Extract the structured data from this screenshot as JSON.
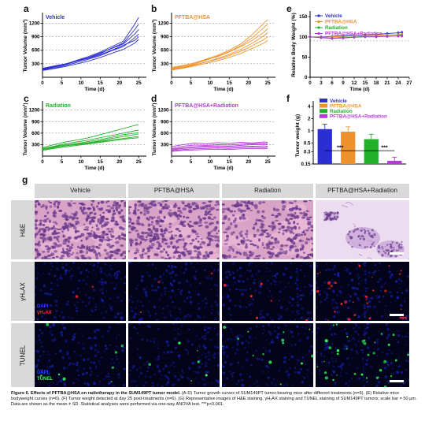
{
  "panel_letters": {
    "a": "a",
    "b": "b",
    "c": "c",
    "d": "d",
    "e": "e",
    "f": "f",
    "g": "g"
  },
  "chart_data": [
    {
      "id": "a",
      "type": "line",
      "title": "Vehicle",
      "title_color": "#2b2fcf",
      "xlabel": "Time (d)",
      "ylabel": "Tumor Volume (mm³)",
      "xlim": [
        0,
        27
      ],
      "ylim": [
        0,
        1400
      ],
      "xticks": [
        0,
        5,
        10,
        15,
        20,
        25
      ],
      "yticks": [
        300,
        600,
        900,
        1200
      ],
      "color": "#2b2fcf",
      "x": [
        0,
        3,
        6,
        9,
        12,
        15,
        18,
        21,
        24,
        25
      ],
      "series": [
        {
          "values": [
            180,
            230,
            290,
            380,
            460,
            560,
            680,
            800,
            1180,
            1330
          ]
        },
        {
          "values": [
            170,
            220,
            280,
            360,
            430,
            520,
            650,
            760,
            1060,
            1180
          ]
        },
        {
          "values": [
            200,
            250,
            300,
            370,
            440,
            540,
            640,
            740,
            960,
            1060
          ]
        },
        {
          "values": [
            160,
            200,
            260,
            330,
            400,
            480,
            590,
            680,
            880,
            960
          ]
        },
        {
          "values": [
            190,
            240,
            290,
            360,
            420,
            500,
            600,
            710,
            820,
            900
          ]
        },
        {
          "values": [
            150,
            190,
            240,
            300,
            360,
            440,
            530,
            620,
            760,
            840
          ]
        }
      ]
    },
    {
      "id": "b",
      "type": "line",
      "title": "PFTBA@HSA",
      "title_color": "#f0922b",
      "xlabel": "Time (d)",
      "ylabel": "Tumor Volume (mm³)",
      "xlim": [
        0,
        27
      ],
      "ylim": [
        0,
        1400
      ],
      "xticks": [
        0,
        5,
        10,
        15,
        20,
        25
      ],
      "yticks": [
        300,
        600,
        900,
        1200
      ],
      "color": "#f0922b",
      "x": [
        0,
        3,
        6,
        9,
        12,
        15,
        18,
        21,
        24,
        25
      ],
      "series": [
        {
          "values": [
            200,
            250,
            320,
            400,
            490,
            600,
            740,
            950,
            1200,
            1280
          ]
        },
        {
          "values": [
            180,
            230,
            300,
            380,
            470,
            570,
            700,
            880,
            1100,
            1180
          ]
        },
        {
          "values": [
            220,
            260,
            320,
            390,
            460,
            560,
            680,
            820,
            1000,
            1080
          ]
        },
        {
          "values": [
            170,
            210,
            270,
            340,
            420,
            510,
            620,
            760,
            920,
            990
          ]
        },
        {
          "values": [
            190,
            230,
            280,
            340,
            400,
            480,
            580,
            700,
            840,
            900
          ]
        },
        {
          "values": [
            160,
            200,
            250,
            310,
            370,
            440,
            530,
            640,
            760,
            820
          ]
        }
      ]
    },
    {
      "id": "c",
      "type": "line",
      "title": "Radiation",
      "title_color": "#22b02a",
      "xlabel": "Time (d)",
      "ylabel": "Tumor Volume (mm³)",
      "xlim": [
        0,
        27
      ],
      "ylim": [
        0,
        1400
      ],
      "xticks": [
        0,
        5,
        10,
        15,
        20,
        25
      ],
      "yticks": [
        300,
        600,
        900,
        1200
      ],
      "color": "#22b02a",
      "x": [
        0,
        3,
        6,
        9,
        12,
        15,
        18,
        21,
        24,
        25
      ],
      "series": [
        {
          "values": [
            220,
            300,
            370,
            420,
            480,
            560,
            640,
            720,
            800,
            820
          ]
        },
        {
          "values": [
            180,
            260,
            320,
            370,
            420,
            480,
            540,
            600,
            660,
            680
          ]
        },
        {
          "values": [
            200,
            250,
            290,
            330,
            380,
            430,
            490,
            560,
            600,
            610
          ]
        },
        {
          "values": [
            160,
            220,
            270,
            310,
            350,
            400,
            460,
            510,
            560,
            580
          ]
        },
        {
          "values": [
            190,
            230,
            270,
            300,
            340,
            380,
            420,
            460,
            500,
            510
          ]
        },
        {
          "values": [
            150,
            200,
            240,
            280,
            320,
            360,
            400,
            440,
            470,
            480
          ]
        }
      ]
    },
    {
      "id": "d",
      "type": "line",
      "title": "PFTBA@HSA+Radiation",
      "title_color": "#b43ad6",
      "xlabel": "Time (d)",
      "ylabel": "Tumor Volume (mm³)",
      "xlim": [
        0,
        27
      ],
      "ylim": [
        0,
        1400
      ],
      "xticks": [
        0,
        5,
        10,
        15,
        20,
        25
      ],
      "yticks": [
        300,
        600,
        900,
        1200
      ],
      "color": "#b43ad6",
      "x": [
        0,
        3,
        6,
        9,
        12,
        15,
        18,
        21,
        24,
        25
      ],
      "series": [
        {
          "values": [
            250,
            300,
            340,
            320,
            350,
            330,
            360,
            340,
            370,
            360
          ]
        },
        {
          "values": [
            200,
            260,
            290,
            280,
            300,
            290,
            310,
            330,
            320,
            330
          ]
        },
        {
          "values": [
            180,
            220,
            250,
            260,
            270,
            260,
            280,
            300,
            290,
            300
          ]
        },
        {
          "values": [
            160,
            200,
            220,
            230,
            240,
            230,
            250,
            260,
            250,
            260
          ]
        },
        {
          "values": [
            140,
            170,
            190,
            200,
            210,
            200,
            220,
            230,
            220,
            230
          ]
        },
        {
          "values": [
            120,
            150,
            160,
            170,
            180,
            170,
            190,
            200,
            190,
            200
          ]
        }
      ]
    },
    {
      "id": "e",
      "type": "line",
      "xlabel": "Time (d)",
      "ylabel": "Relative Body Weight (%)",
      "xlim": [
        0,
        27
      ],
      "ylim": [
        0,
        160
      ],
      "xticks": [
        0,
        3,
        6,
        9,
        12,
        15,
        18,
        21,
        24,
        27
      ],
      "yticks": [
        0,
        50,
        100,
        150
      ],
      "dashed_line": 90,
      "legend": "top-left",
      "x": [
        0,
        3,
        6,
        9,
        12,
        15,
        18,
        21,
        24,
        25
      ],
      "series": [
        {
          "name": "Vehicle",
          "color": "#2b2fcf",
          "values": [
            100,
            100,
            101,
            103,
            104,
            105,
            106,
            108,
            110,
            111
          ]
        },
        {
          "name": "PFTBA@HSA",
          "color": "#f0922b",
          "values": [
            100,
            99,
            100,
            101,
            103,
            103,
            104,
            105,
            106,
            107
          ]
        },
        {
          "name": "Radiation",
          "color": "#22b02a",
          "values": [
            100,
            98,
            97,
            99,
            100,
            101,
            101,
            102,
            103,
            104
          ]
        },
        {
          "name": "PFTBA@HSA+Radiation",
          "color": "#b43ad6",
          "values": [
            100,
            98,
            96,
            97,
            99,
            100,
            100,
            101,
            102,
            102
          ]
        }
      ]
    },
    {
      "id": "f",
      "type": "bar",
      "ylabel": "Tumor weight (g)",
      "yticks": [
        "0.15",
        "0.3",
        "0.5",
        "1",
        "2",
        "4"
      ],
      "legend": "top",
      "categories": [
        "Vehicle",
        "PFTBA@HSA",
        "Radiation",
        "PFTBA@HSA+Radiation"
      ],
      "values": [
        1.1,
        0.95,
        0.62,
        0.18
      ],
      "errors": [
        0.35,
        0.3,
        0.2,
        0.04
      ],
      "colors": [
        "#2b2fcf",
        "#f0922b",
        "#22b02a",
        "#b43ad6"
      ],
      "significance": [
        "***",
        "***"
      ]
    }
  ],
  "micrographs": {
    "columns": [
      "Vehicle",
      "PFTBA@HSA",
      "Radiation",
      "PFTBA@HSA+Radiation"
    ],
    "rows": [
      "H&E",
      "γH₂AX",
      "TUNEL"
    ],
    "labels": {
      "dapi": "DAPI",
      "gh2ax": "γH₂AX",
      "tunel": "TUNEL"
    },
    "colors": {
      "he_bg": "#d9a3c8",
      "he_nuclei": "#6a3a8c",
      "he_sparse_bg": "#ecdcef",
      "fluor_bg": "#03031a",
      "dapi": "#1e2bd6",
      "red_signal": "#ff2a2a",
      "green_signal": "#2cff5a"
    }
  },
  "caption": {
    "title": "Figure 6. Effects of PFTBA@HSA on radiotherapy in the SUM149PT tumor model.",
    "body": "(A-D) Tumor growth curves of SUM149PT tumor-bearing mice after different treatments (n=6). (E) Relative mice bodyweight curves (n=6). (F) Tumor weight detected at day 25 post-treatments (n=6). (G) Representative images of H&E staining, γH₂AX staining and TUNEL staining of SUM149PT tumors; scale bar = 50 μm. Data are shown as the mean ± SD. Statistical analyses were performed via one-way ANOVA test. ***p<0.001."
  }
}
